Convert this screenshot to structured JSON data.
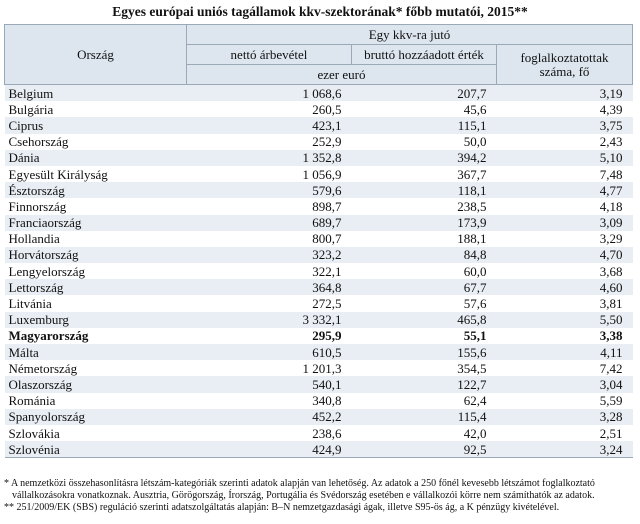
{
  "title": "Egyes európai uniós tagállamok kkv-szektorának* főbb mutatói, 2015**",
  "table": {
    "header": {
      "country": "Ország",
      "group": "Egy kkv-ra jutó",
      "revenue": "nettó árbevétel",
      "gva": "bruttó hozzáadott érték",
      "employees": "foglalkoztatottak száma, fő",
      "unit": "ezer euró"
    },
    "rows": [
      {
        "country": "Belgium",
        "revenue": "1 068,6",
        "gva": "207,7",
        "employees": "3,19"
      },
      {
        "country": "Bulgária",
        "revenue": "260,5",
        "gva": "45,6",
        "employees": "4,39"
      },
      {
        "country": "Ciprus",
        "revenue": "423,1",
        "gva": "115,1",
        "employees": "3,75"
      },
      {
        "country": "Csehország",
        "revenue": "252,9",
        "gva": "50,0",
        "employees": "2,43"
      },
      {
        "country": "Dánia",
        "revenue": "1 352,8",
        "gva": "394,2",
        "employees": "5,10"
      },
      {
        "country": "Egyesült Királyság",
        "revenue": "1 056,9",
        "gva": "367,7",
        "employees": "7,48"
      },
      {
        "country": "Észtország",
        "revenue": "579,6",
        "gva": "118,1",
        "employees": "4,77"
      },
      {
        "country": "Finnország",
        "revenue": "898,7",
        "gva": "238,5",
        "employees": "4,18"
      },
      {
        "country": "Franciaország",
        "revenue": "689,7",
        "gva": "173,9",
        "employees": "3,09"
      },
      {
        "country": "Hollandia",
        "revenue": "800,7",
        "gva": "188,1",
        "employees": "3,29"
      },
      {
        "country": "Horvátország",
        "revenue": "323,2",
        "gva": "84,8",
        "employees": "4,70"
      },
      {
        "country": "Lengyelország",
        "revenue": "322,1",
        "gva": "60,0",
        "employees": "3,68"
      },
      {
        "country": "Lettország",
        "revenue": "364,8",
        "gva": "67,7",
        "employees": "4,60"
      },
      {
        "country": "Litvánia",
        "revenue": "272,5",
        "gva": "57,6",
        "employees": "3,81"
      },
      {
        "country": "Luxemburg",
        "revenue": "3 332,1",
        "gva": "465,8",
        "employees": "5,50"
      },
      {
        "country": "Magyarország",
        "revenue": "295,9",
        "gva": "55,1",
        "employees": "3,38",
        "bold": true
      },
      {
        "country": "Málta",
        "revenue": "610,5",
        "gva": "155,6",
        "employees": "4,11"
      },
      {
        "country": "Németország",
        "revenue": "1 201,3",
        "gva": "354,5",
        "employees": "7,42"
      },
      {
        "country": "Olaszország",
        "revenue": "540,1",
        "gva": "122,7",
        "employees": "3,04"
      },
      {
        "country": "Románia",
        "revenue": "340,8",
        "gva": "62,4",
        "employees": "5,59"
      },
      {
        "country": "Spanyolország",
        "revenue": "452,2",
        "gva": "115,4",
        "employees": "3,28"
      },
      {
        "country": "Szlovákia",
        "revenue": "238,6",
        "gva": "42,0",
        "employees": "2,51"
      },
      {
        "country": "Szlovénia",
        "revenue": "424,9",
        "gva": "92,5",
        "employees": "3,24"
      }
    ]
  },
  "footnotes": [
    "* A nemzetközi összehasonlításra létszám-kategóriák szerinti adatok alapján van lehetőség. Az adatok a 250 főnél kevesebb létszámot foglalkoztató vállalkozásokra vonatkoznak. Ausztria, Görögország, Írország, Portugália és Svédország esetében e vállalkozói körre nem számíthatók az adatok.",
    "** 251/2009/EK (SBS) reguláció szerinti adatszolgáltatás alapján: B–N nemzetgazdasági ágak, illetve S95-ös ág, a K pénzügy kivételével."
  ]
}
